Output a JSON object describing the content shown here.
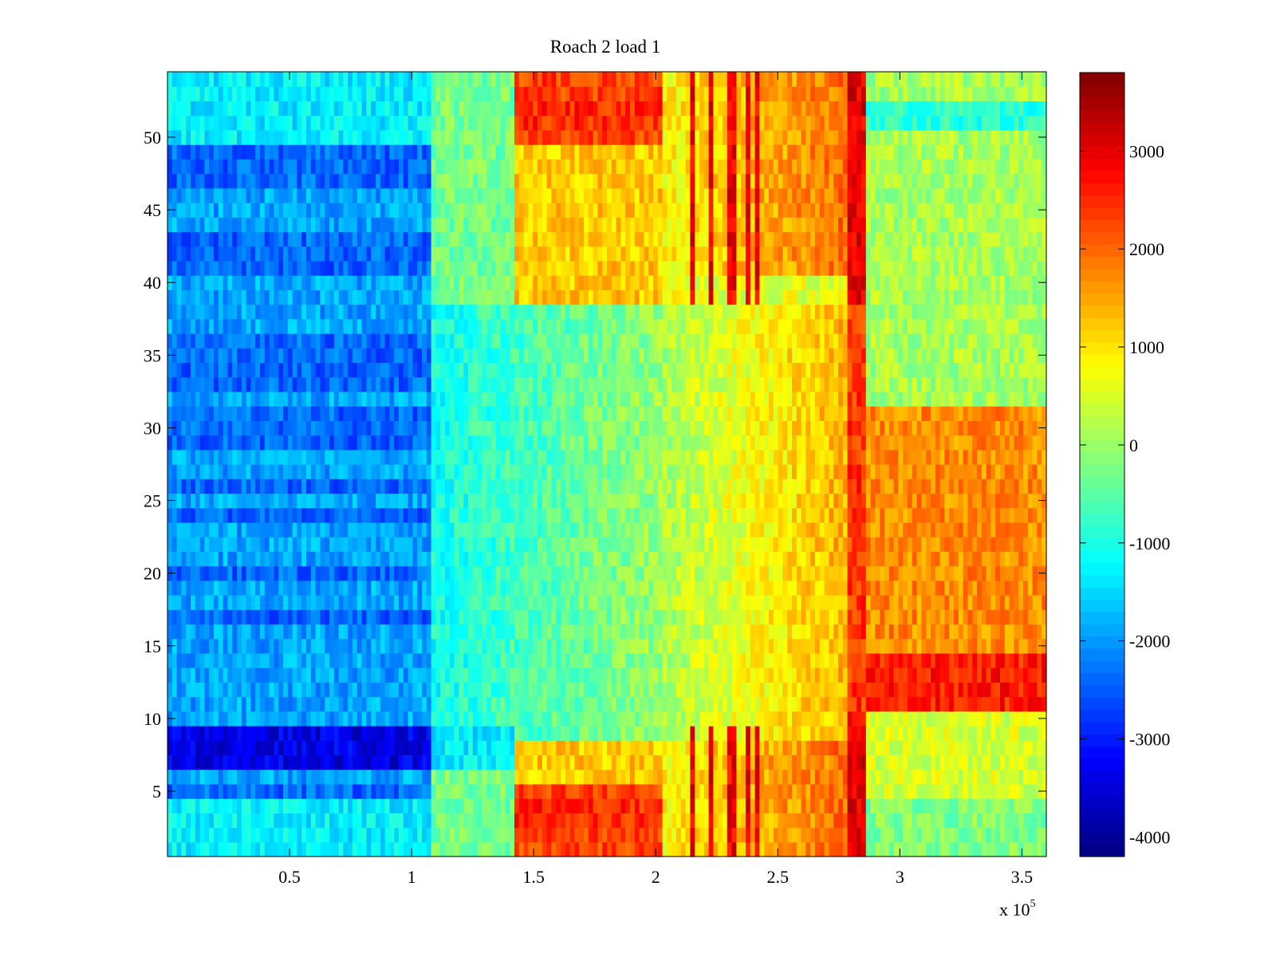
{
  "chart_data": {
    "type": "heatmap",
    "title": "Roach 2 load 1",
    "xlabel": "",
    "ylabel": "",
    "x_exponent_label": "x 10",
    "x_exponent_power": "5",
    "xlim": [
      0,
      3.6
    ],
    "ylim": [
      0.5,
      54.5
    ],
    "x_ticks": [
      0.5,
      1,
      1.5,
      2,
      2.5,
      3,
      3.5
    ],
    "x_tick_labels": [
      "0.5",
      "1",
      "1.5",
      "2",
      "2.5",
      "3",
      "3.5"
    ],
    "y_ticks": [
      5,
      10,
      15,
      20,
      25,
      30,
      35,
      40,
      45,
      50
    ],
    "y_tick_labels": [
      "5",
      "10",
      "15",
      "20",
      "25",
      "30",
      "35",
      "40",
      "45",
      "50"
    ],
    "rows": 54,
    "colormap": "jet",
    "colorbar": {
      "range": [
        -4200,
        3800
      ],
      "ticks": [
        -4000,
        -3000,
        -2000,
        -1000,
        0,
        1000,
        2000,
        3000
      ],
      "tick_labels": [
        "-4000",
        "-3000",
        "-2000",
        "-1000",
        "0",
        "1000",
        "2000",
        "3000"
      ]
    },
    "regions": [
      {
        "name": "blue band",
        "x_range": [
          0,
          1.08
        ],
        "y_range": [
          0.5,
          54.5
        ],
        "approx_value": -1900
      },
      {
        "name": "transition",
        "x_range": [
          1.08,
          2.0
        ],
        "y_range": [
          10.5,
          38.5
        ],
        "approx_value": -400
      },
      {
        "name": "hot block top",
        "x_range": [
          1.43,
          2.02
        ],
        "y_range": [
          38.5,
          54.5
        ],
        "approx_value": 1600
      },
      {
        "name": "hot block bottom",
        "x_range": [
          1.43,
          2.02
        ],
        "y_range": [
          0.5,
          8.5
        ],
        "approx_value": 1800
      },
      {
        "name": "deep blue rows",
        "x_range": [
          0,
          1.08
        ],
        "y_range": [
          6.5,
          9.5
        ],
        "approx_value": -3400
      },
      {
        "name": "hot stripe",
        "x_range": [
          2.78,
          2.85
        ],
        "y_range": [
          0.5,
          54.5
        ],
        "approx_value": 3300
      },
      {
        "name": "right warm block",
        "x_range": [
          2.86,
          3.6
        ],
        "y_range": [
          10.5,
          31.5
        ],
        "approx_value": 2000
      },
      {
        "name": "right cool top",
        "x_range": [
          2.86,
          3.6
        ],
        "y_range": [
          31.5,
          54.5
        ],
        "approx_value": 0
      }
    ]
  }
}
